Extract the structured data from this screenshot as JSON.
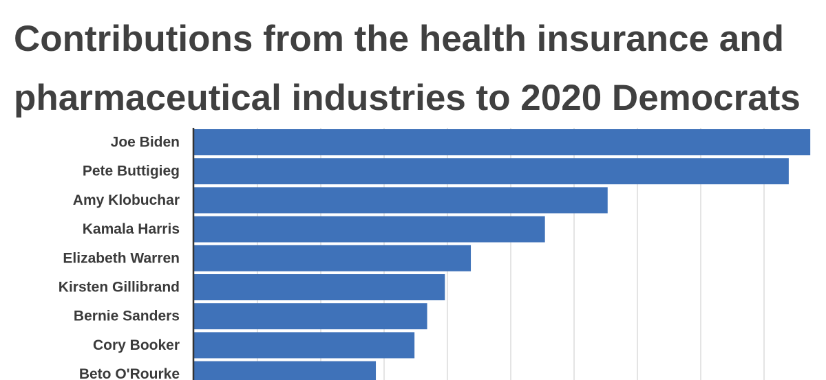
{
  "chart_data": {
    "type": "bar",
    "orientation": "horizontal",
    "title_lines": [
      "Contributions from the health insurance and",
      "pharmaceutical industries to 2020 Democrats"
    ],
    "categories": [
      "Joe Biden",
      "Pete Buttigieg",
      "Amy Klobuchar",
      "Kamala Harris",
      "Elizabeth Warren",
      "Kirsten Gillibrand",
      "Bernie Sanders",
      "Cory Booker",
      "Beto O'Rourke"
    ],
    "values": [
      97.3,
      93.9,
      65.3,
      55.4,
      43.7,
      39.6,
      36.8,
      34.8,
      28.7
    ],
    "xlim": [
      0,
      100
    ],
    "grid": true,
    "bar_color": "#3f72b9",
    "grid_color": "#dcdcdc",
    "axis_color": "#333333"
  }
}
